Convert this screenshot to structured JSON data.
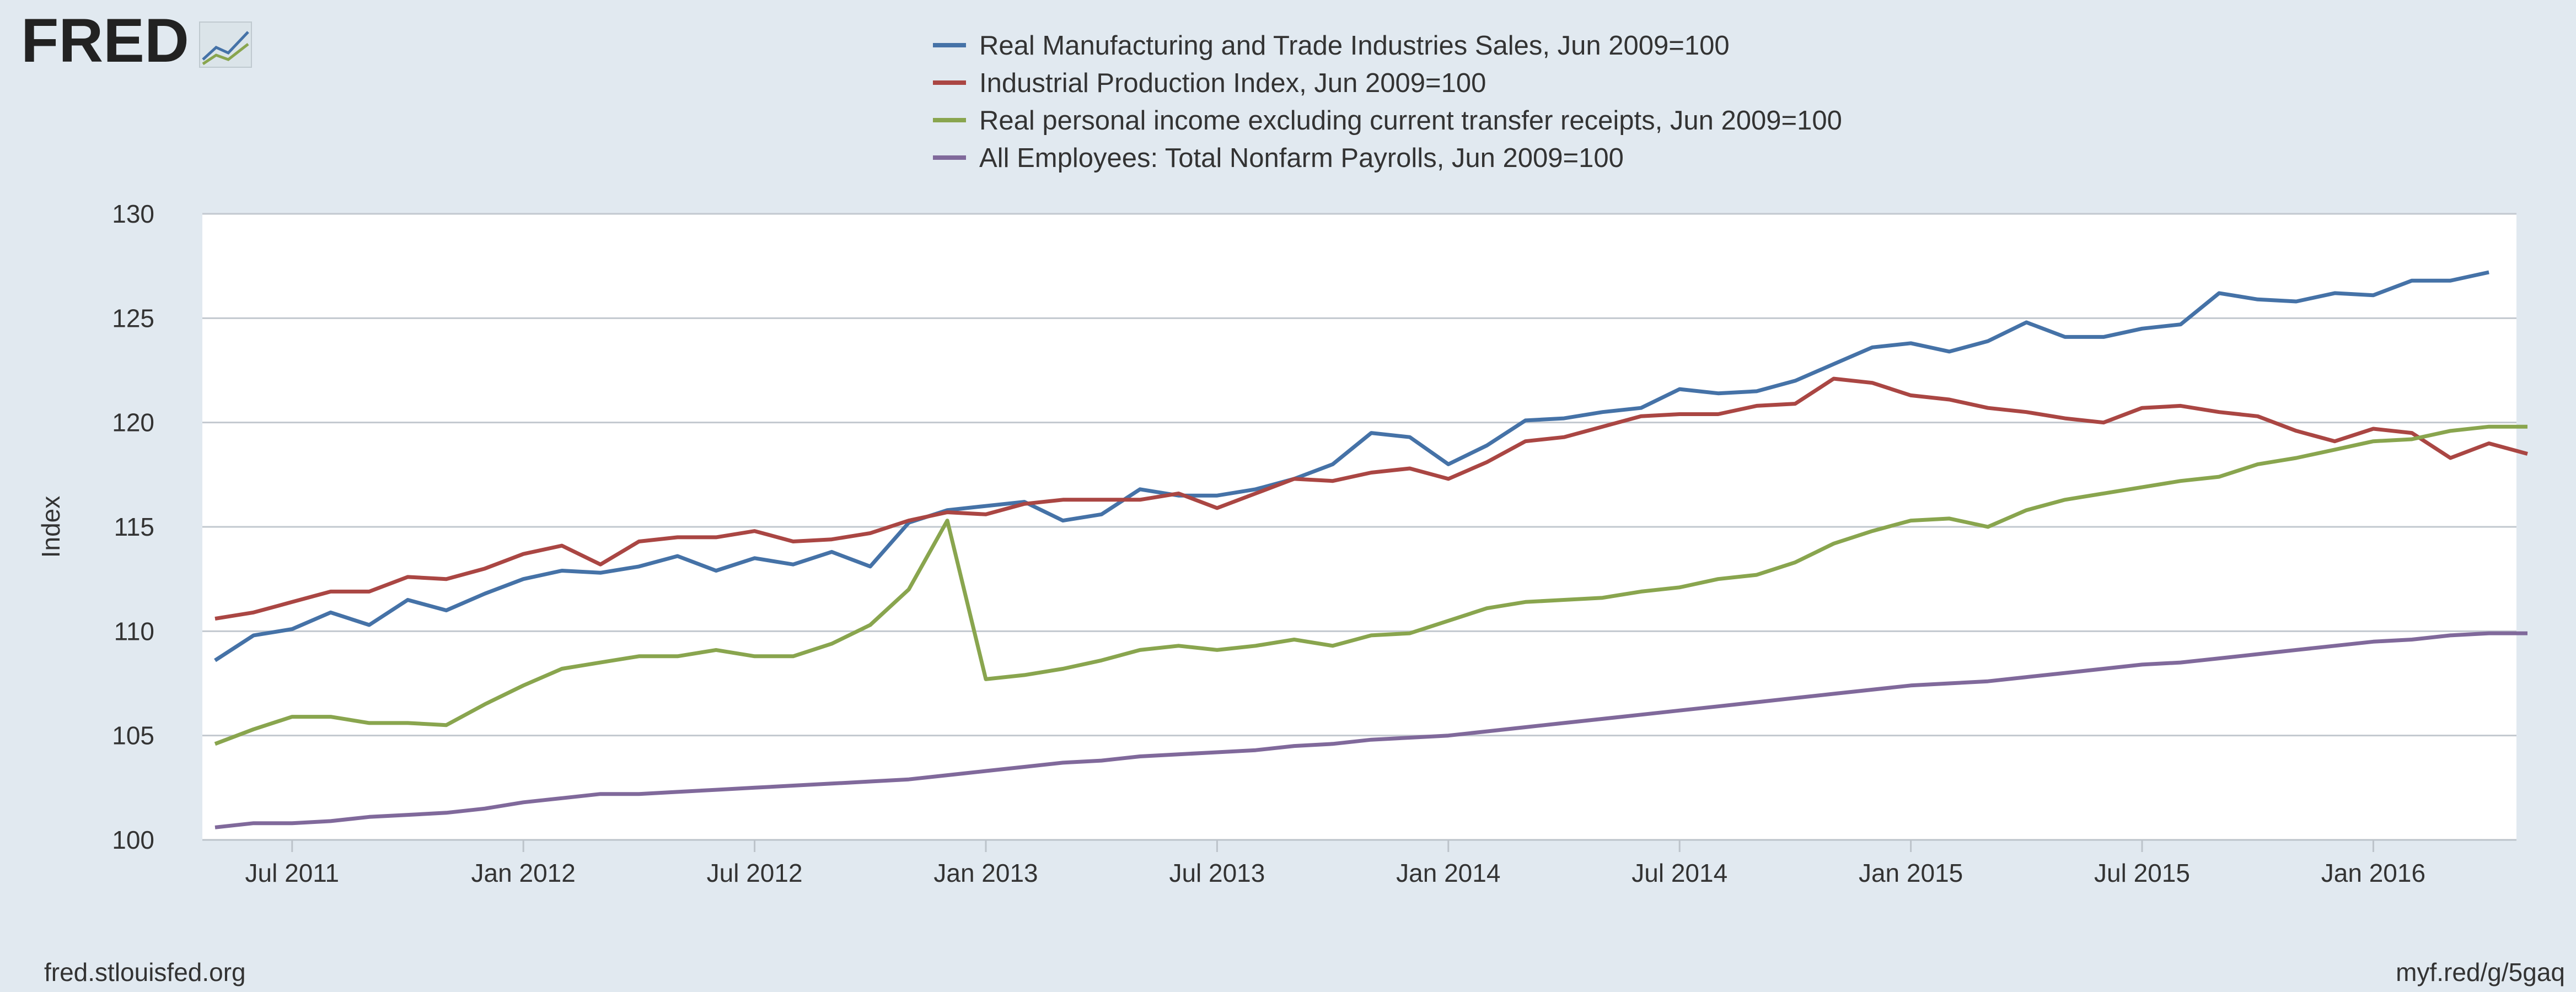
{
  "header": {
    "logo_text": "FRED",
    "logo_icon": "line-graph-icon"
  },
  "footer": {
    "source": "fred.stlouisfed.org",
    "short_link": "myf.red/g/5gaq"
  },
  "colors": {
    "background": "#e1e9f0",
    "plot_background": "#ffffff",
    "grid": "#c2c8cf",
    "text": "#333333"
  },
  "chart_data": {
    "type": "line",
    "title": "",
    "xlabel": "",
    "ylabel": "Index",
    "ylim": [
      100,
      130
    ],
    "yticks": [
      100,
      105,
      110,
      115,
      120,
      125,
      130
    ],
    "x_start": "2011-05",
    "x_ticks": [
      {
        "label": "Jul 2011",
        "month_index": 2
      },
      {
        "label": "Jan 2012",
        "month_index": 8
      },
      {
        "label": "Jul 2012",
        "month_index": 14
      },
      {
        "label": "Jan 2013",
        "month_index": 20
      },
      {
        "label": "Jul 2013",
        "month_index": 26
      },
      {
        "label": "Jan 2014",
        "month_index": 32
      },
      {
        "label": "Jul 2014",
        "month_index": 38
      },
      {
        "label": "Jan 2015",
        "month_index": 44
      },
      {
        "label": "Jul 2015",
        "month_index": 50
      },
      {
        "label": "Jan 2016",
        "month_index": 56
      }
    ],
    "grid": true,
    "legend_position": "top-center",
    "series": [
      {
        "name": "Real Manufacturing and Trade Industries Sales, Jun 2009=100",
        "color": "#4572a7",
        "values": [
          108.6,
          109.8,
          110.1,
          110.9,
          110.3,
          111.5,
          111.0,
          111.8,
          112.5,
          112.9,
          112.8,
          113.1,
          113.6,
          112.9,
          113.5,
          113.2,
          113.8,
          113.1,
          115.2,
          115.8,
          116.0,
          116.2,
          115.3,
          115.6,
          116.8,
          116.5,
          116.5,
          116.8,
          117.3,
          118.0,
          119.5,
          119.3,
          118.0,
          118.9,
          120.1,
          120.2,
          120.5,
          120.7,
          121.6,
          121.4,
          121.5,
          122.0,
          122.8,
          123.6,
          123.8,
          123.4,
          123.9,
          124.8,
          124.1,
          124.1,
          124.5,
          124.7,
          126.2,
          125.9,
          125.8,
          126.2,
          126.1,
          126.8,
          126.8,
          127.2
        ]
      },
      {
        "name": "Industrial Production Index, Jun 2009=100",
        "color": "#aa4643",
        "values": [
          110.6,
          110.9,
          111.4,
          111.9,
          111.9,
          112.6,
          112.5,
          113.0,
          113.7,
          114.1,
          113.2,
          114.3,
          114.5,
          114.5,
          114.8,
          114.3,
          114.4,
          114.7,
          115.3,
          115.7,
          115.6,
          116.1,
          116.3,
          116.3,
          116.3,
          116.6,
          115.9,
          116.6,
          117.3,
          117.2,
          117.6,
          117.8,
          117.3,
          118.1,
          119.1,
          119.3,
          119.8,
          120.3,
          120.4,
          120.4,
          120.8,
          120.9,
          122.1,
          121.9,
          121.3,
          121.1,
          120.7,
          120.5,
          120.2,
          120.0,
          120.7,
          120.8,
          120.5,
          120.3,
          119.6,
          119.1,
          119.7,
          119.5,
          118.3,
          119.0,
          118.5
        ]
      },
      {
        "name": "Real personal income excluding current transfer receipts, Jun 2009=100",
        "color": "#89a54e",
        "values": [
          104.6,
          105.3,
          105.9,
          105.9,
          105.6,
          105.6,
          105.5,
          106.5,
          107.4,
          108.2,
          108.5,
          108.8,
          108.8,
          109.1,
          108.8,
          108.8,
          109.4,
          110.3,
          112.0,
          115.3,
          107.7,
          107.9,
          108.2,
          108.6,
          109.1,
          109.3,
          109.1,
          109.3,
          109.6,
          109.3,
          109.8,
          109.9,
          110.5,
          111.1,
          111.4,
          111.5,
          111.6,
          111.9,
          112.1,
          112.5,
          112.7,
          113.3,
          114.2,
          114.8,
          115.3,
          115.4,
          115.0,
          115.8,
          116.3,
          116.6,
          116.9,
          117.2,
          117.4,
          118.0,
          118.3,
          118.7,
          119.1,
          119.2,
          119.6,
          119.8,
          119.8
        ]
      },
      {
        "name": "All Employees: Total Nonfarm Payrolls, Jun 2009=100",
        "color": "#80699b",
        "values": [
          100.6,
          100.8,
          100.8,
          100.9,
          101.1,
          101.2,
          101.3,
          101.5,
          101.8,
          102.0,
          102.2,
          102.2,
          102.3,
          102.4,
          102.5,
          102.6,
          102.7,
          102.8,
          102.9,
          103.1,
          103.3,
          103.5,
          103.7,
          103.8,
          104.0,
          104.1,
          104.2,
          104.3,
          104.5,
          104.6,
          104.8,
          104.9,
          105.0,
          105.2,
          105.4,
          105.6,
          105.8,
          106.0,
          106.2,
          106.4,
          106.6,
          106.8,
          107.0,
          107.2,
          107.4,
          107.5,
          107.6,
          107.8,
          108.0,
          108.2,
          108.4,
          108.5,
          108.7,
          108.9,
          109.1,
          109.3,
          109.5,
          109.6,
          109.8,
          109.9,
          109.9
        ]
      }
    ]
  }
}
